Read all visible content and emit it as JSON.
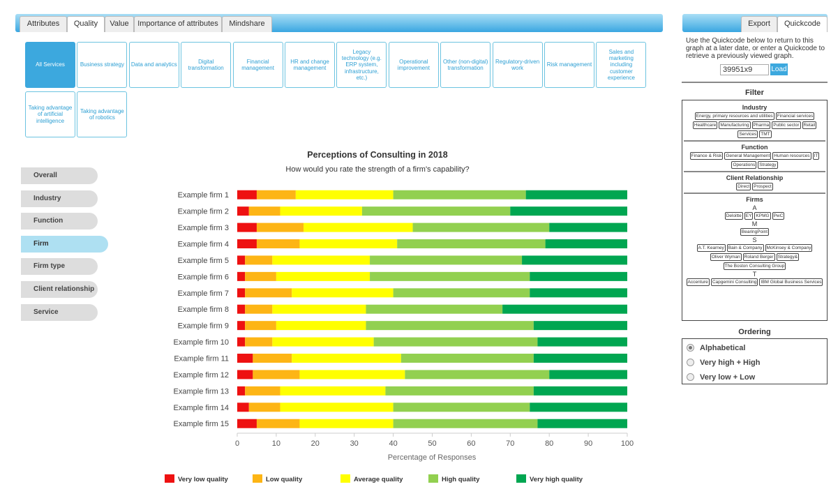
{
  "tabs": [
    "Attributes",
    "Quality",
    "Value",
    "Importance of attributes",
    "Mindshare"
  ],
  "services": [
    "All Services",
    "Business strategy",
    "Data and analytics",
    "Digital transformation",
    "Financial management",
    "HR and change management",
    "Legacy technology (e.g. ERP system, infrastructure, etc.)",
    "Operational improvement",
    "Other (non-digital) transformation",
    "Regulatory-driven work",
    "Risk management",
    "Sales and marketing including customer experience",
    "Taking advantage of artificial intelligence",
    "Taking advantage of robotics"
  ],
  "side_menu": [
    "Overall",
    "Industry",
    "Function",
    "Firm",
    "Firm type",
    "Client relationship",
    "Service"
  ],
  "right_tabs": [
    "Export",
    "Quickcode"
  ],
  "quickcode": {
    "text": "Use the Quickcode below to return to this graph at a later date, or enter a Quickcode to retrieve a previously viewed graph.",
    "code": "39951x9",
    "button": "Load"
  },
  "filter": {
    "title": "Filter",
    "groups": [
      {
        "name": "Industry",
        "items": [
          "Energy, primary resources and utilities",
          "Financial services",
          "Healthcare",
          "Manufacturing",
          "Pharma",
          "Public sector",
          "Retail",
          "Services",
          "TMT"
        ]
      },
      {
        "name": "Function",
        "items": [
          "Finance & Risk",
          "General Management",
          "Human resources",
          "IT",
          "Operations",
          "Strategy"
        ]
      },
      {
        "name": "Client Relationship",
        "items": [
          "Direct",
          "Prospect"
        ]
      },
      {
        "name": "Firms",
        "subgroups": [
          {
            "name": "A",
            "items": [
              "Deloitte",
              "EY",
              "KPMG",
              "PwC"
            ]
          },
          {
            "name": "M",
            "items": [
              "BearingPoint"
            ]
          },
          {
            "name": "S",
            "items": [
              "A.T. Kearney",
              "Bain & Company",
              "McKinsey & Company",
              "Oliver Wyman",
              "Roland Berger",
              "Strategy&",
              "The Boston Consulting Group"
            ]
          },
          {
            "name": "T",
            "items": [
              "Accenture",
              "Capgemini Consulting",
              "IBM Global Business Services"
            ]
          }
        ]
      }
    ]
  },
  "ordering": {
    "title": "Ordering",
    "options": [
      "Alphabetical",
      "Very high + High",
      "Very low + Low"
    ]
  },
  "chart_data": {
    "type": "stacked_barh",
    "title": "Perceptions of Consulting in 2018",
    "subtitle": "How would you rate the strength of a firm's capability?",
    "x_label": "Percentage of Responses",
    "categories": [
      "Example firm 1",
      "Example firm 2",
      "Example firm 3",
      "Example firm 4",
      "Example firm 5",
      "Example firm 6",
      "Example firm 7",
      "Example firm 8",
      "Example firm 9",
      "Example firm 10",
      "Example firm 11",
      "Example firm 12",
      "Example firm 13",
      "Example firm 14",
      "Example firm 15"
    ],
    "series": [
      {
        "name": "Very low quality",
        "color": "#ee1111",
        "values": [
          5,
          3,
          5,
          5,
          2,
          2,
          2,
          2,
          2,
          2,
          4,
          4,
          2,
          3,
          5
        ]
      },
      {
        "name": "Low quality",
        "color": "#fdb515",
        "values": [
          10,
          8,
          12,
          11,
          7,
          8,
          12,
          7,
          8,
          7,
          10,
          12,
          9,
          8,
          11
        ]
      },
      {
        "name": "Average quality",
        "color": "#ffff00",
        "values": [
          25,
          21,
          28,
          25,
          25,
          24,
          26,
          24,
          23,
          26,
          28,
          27,
          27,
          29,
          24
        ]
      },
      {
        "name": "High quality",
        "color": "#92d050",
        "values": [
          34,
          38,
          35,
          38,
          39,
          41,
          35,
          35,
          43,
          42,
          34,
          37,
          38,
          35,
          37
        ]
      },
      {
        "name": "Very high quality",
        "color": "#00a651",
        "values": [
          26,
          30,
          20,
          21,
          27,
          25,
          25,
          32,
          24,
          23,
          24,
          20,
          24,
          25,
          23
        ]
      }
    ],
    "xlim": [
      0,
      100
    ],
    "xticks": [
      0,
      10,
      20,
      30,
      40,
      50,
      60,
      70,
      80,
      90,
      100
    ]
  }
}
